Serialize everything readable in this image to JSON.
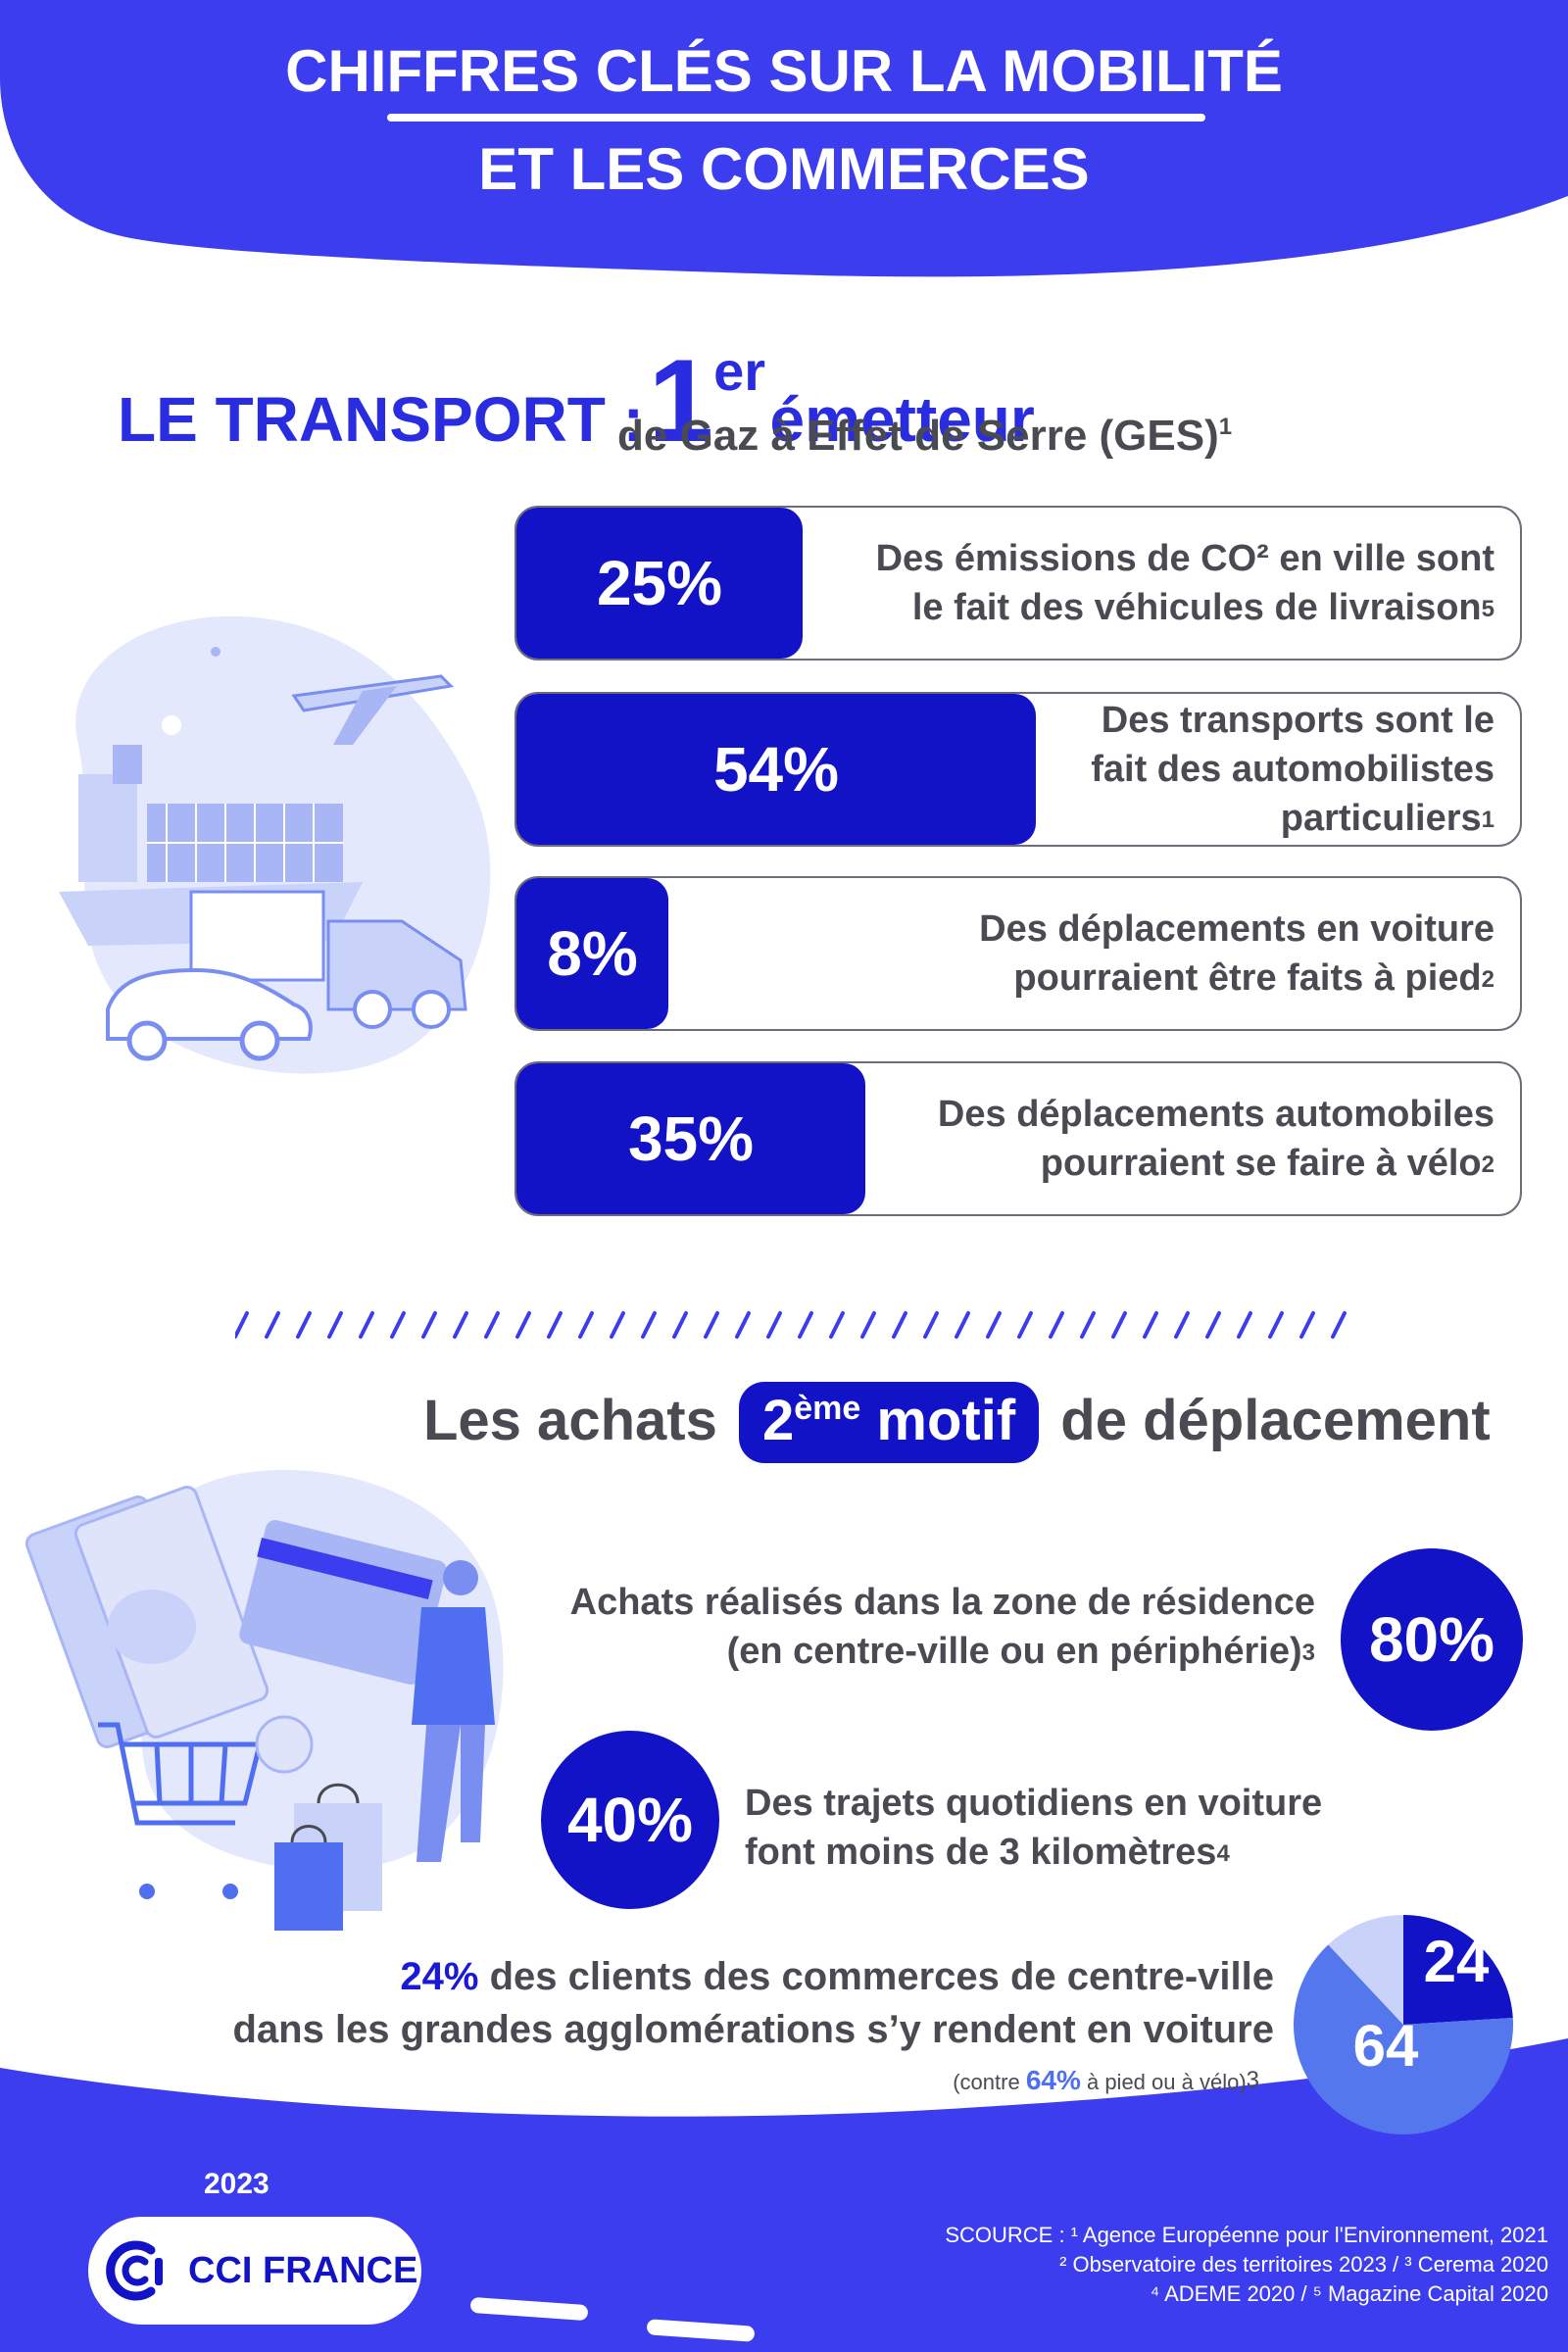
{
  "header": {
    "line1": "CHIFFRES CLÉS SUR LA MOBILITÉ",
    "line2": "ET LES COMMERCES"
  },
  "transport": {
    "title_prefix": "LE TRANSPORT :",
    "title_number": "1",
    "title_sup": "er",
    "title_suffix": "émetteur",
    "subtitle": "de Gaz à Effet de Serre (GES)",
    "subtitle_ref": "1",
    "stats": [
      {
        "value": "25%",
        "fraction": 0.25,
        "line1": "Des émissions de CO² en ville sont",
        "line2": "le fait des véhicules de livraison",
        "line3": "",
        "ref": "5"
      },
      {
        "value": "54%",
        "fraction": 0.54,
        "line1": "Des transports sont le",
        "line2": "fait des automobilistes",
        "line3": "particuliers",
        "ref": "1"
      },
      {
        "value": "8%",
        "fraction": 0.08,
        "line1": "Des déplacements en voiture",
        "line2": "pourraient être faits à pied",
        "line3": "",
        "ref": "2"
      },
      {
        "value": "35%",
        "fraction": 0.35,
        "line1": "Des déplacements automobiles",
        "line2": "pourraient se faire à vélo",
        "line3": "",
        "ref": "2"
      }
    ]
  },
  "achats": {
    "title_prefix": "Les achats",
    "pill_number": "2",
    "pill_sup": "ème",
    "pill_word": "motif",
    "title_suffix": "de déplacement",
    "stat80": {
      "value": "80%",
      "line1": "Achats réalisés dans la zone de résidence",
      "line2": "(en centre-ville ou en périphérie)",
      "ref": "3"
    },
    "stat40": {
      "value": "40%",
      "line1": "Des trajets quotidiens en voiture",
      "line2": "font moins de 3 kilomètres",
      "ref": "4"
    },
    "stat24": {
      "highlight": "24%",
      "line1_rest": " des clients des commerces de centre-ville",
      "line2": "dans les grandes agglomérations s’y rendent en voiture",
      "contre_prefix": "(contre ",
      "contre_value": "64%",
      "contre_suffix": " à pied ou à vélo)",
      "ref": "3"
    }
  },
  "chart_data": {
    "type": "pie",
    "categories": [
      "24",
      "64",
      ""
    ],
    "values": [
      24,
      64,
      12
    ],
    "colors": [
      "#1212c7",
      "#5477ee",
      "#c9d3fa"
    ],
    "title": "",
    "xlabel": "",
    "ylabel": ""
  },
  "footer": {
    "year": "2023",
    "logo_text": "CCI FRANCE",
    "source_line1": "SCOURCE : ¹ Agence Européenne pour l'Environnement, 2021",
    "source_line2": "² Observatoire des territoires 2023 / ³ Cerema 2020",
    "source_line3": "⁴ ADEME 2020 / ⁵ Magazine Capital 2020"
  },
  "colors": {
    "primary": "#1212c7",
    "header_bg": "#3d3df0",
    "light": "#dfe4fb",
    "text": "#4a4a52"
  }
}
